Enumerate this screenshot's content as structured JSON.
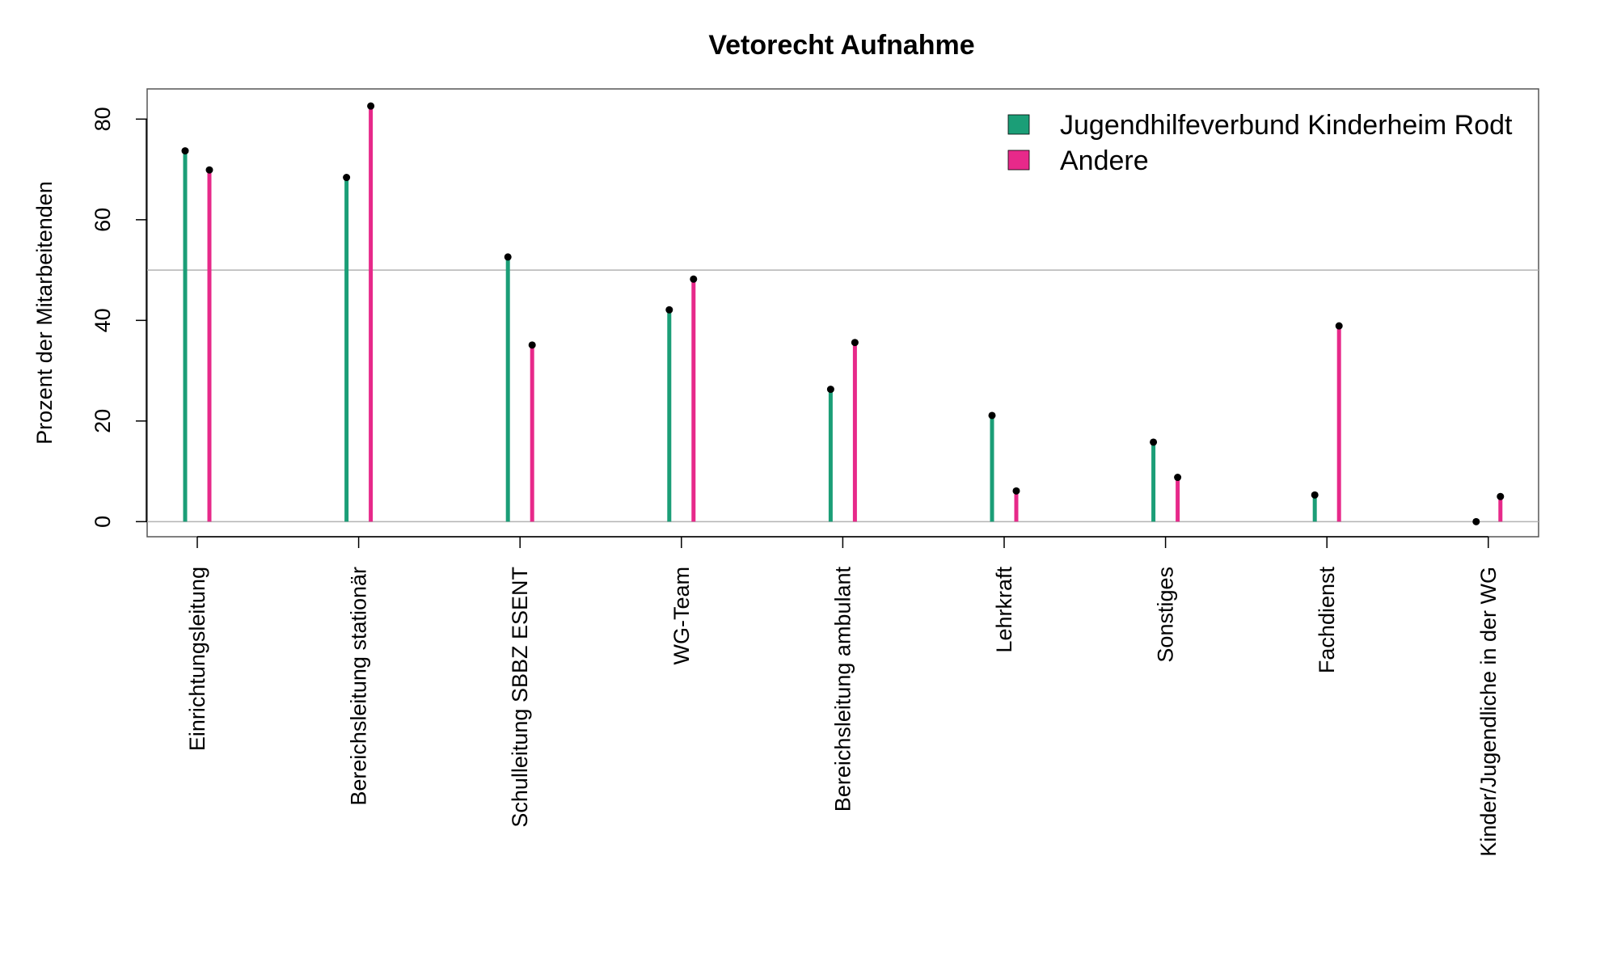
{
  "chart_data": {
    "type": "lollipop",
    "title": "Vetorecht Aufnahme",
    "xlabel": "",
    "ylabel": "Prozent der Mitarbeitenden",
    "ylim": [
      -3,
      86
    ],
    "yticks": [
      "0",
      "20",
      "40",
      "60",
      "80"
    ],
    "reference_lines": [
      0,
      50
    ],
    "legend_position": "top-right",
    "categories": [
      "Einrichtungsleitung",
      "Bereichsleitung stationär",
      "Schulleitung SBBZ ESENT",
      "WG-Team",
      "Bereichsleitung ambulant",
      "Lehrkraft",
      "Sonstiges",
      "Fachdienst",
      "Kinder/Jugendliche in der WG"
    ],
    "series": [
      {
        "name": "Jugendhilfeverbund Kinderheim Rodt",
        "color": "#1b9e77",
        "values": [
          73.7,
          68.4,
          52.6,
          42.1,
          26.3,
          21.1,
          15.8,
          5.3,
          0
        ]
      },
      {
        "name": "Andere",
        "color": "#e7298a",
        "values": [
          69.9,
          82.6,
          35.1,
          48.2,
          35.6,
          6.1,
          8.8,
          38.9,
          5.0
        ]
      }
    ],
    "grid": false
  }
}
